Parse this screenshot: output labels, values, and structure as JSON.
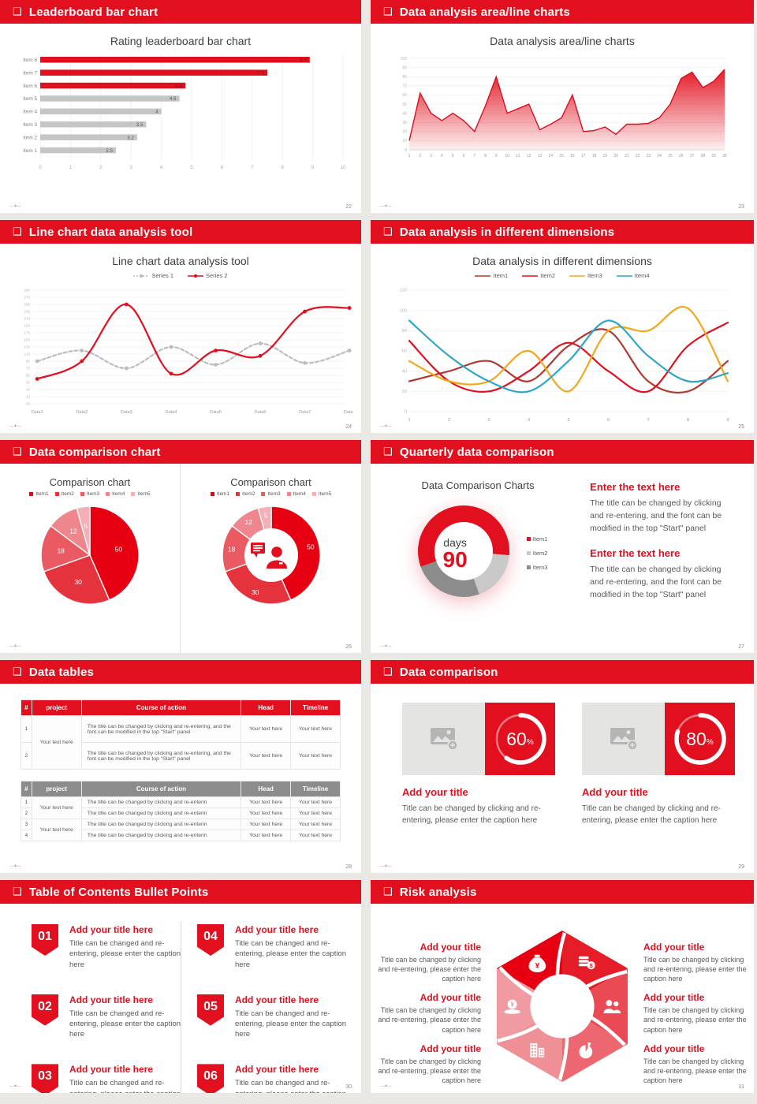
{
  "page": {
    "background": "#e9e8e5",
    "accent": "#e2101e"
  },
  "slides": [
    {
      "header": "Leaderboard bar chart",
      "page_num": "22"
    },
    {
      "header": "Data analysis area/line charts",
      "page_num": "23"
    },
    {
      "header": "Line chart data analysis tool",
      "page_num": "24"
    },
    {
      "header": "Data analysis in different dimensions",
      "page_num": "25"
    },
    {
      "header": "Data comparison chart",
      "page_num": "26"
    },
    {
      "header": "Quarterly data comparison",
      "page_num": "27"
    },
    {
      "header": "Data tables",
      "page_num": "28"
    },
    {
      "header": "Data comparison",
      "page_num": "29"
    },
    {
      "header": "Table of Contents Bullet Points",
      "page_num": "30"
    },
    {
      "header": "Risk analysis",
      "page_num": "31"
    }
  ],
  "chart_data": [
    {
      "type": "bar",
      "orientation": "horizontal",
      "title": "Rating leaderboard bar chart",
      "categories": [
        "Item 8",
        "Item 7",
        "Item 6",
        "Item 5",
        "Item 4",
        "Item 3",
        "Item 2",
        "Item 1"
      ],
      "values": [
        8.9,
        7.5,
        4.8,
        4.6,
        4,
        3.5,
        3.2,
        2.5
      ],
      "bar_colors": [
        "#e2101e",
        "#e2101e",
        "#e2101e",
        "#c5c5c5",
        "#c5c5c5",
        "#c5c5c5",
        "#c5c5c5",
        "#c5c5c5"
      ],
      "xlim": [
        0,
        10
      ],
      "xtick_step": 1,
      "grid": true
    },
    {
      "type": "area",
      "title": "Data analysis area/line charts",
      "x": [
        1,
        2,
        3,
        4,
        5,
        6,
        7,
        8,
        9,
        10,
        11,
        12,
        13,
        14,
        15,
        16,
        17,
        18,
        19,
        20,
        21,
        22,
        23,
        24,
        25,
        26,
        27,
        28,
        29,
        30
      ],
      "values": [
        10,
        62,
        40,
        32,
        40,
        32,
        20,
        48,
        80,
        40,
        45,
        50,
        22,
        28,
        35,
        60,
        20,
        21,
        25,
        17,
        28,
        28,
        29,
        35,
        50,
        78,
        85,
        68,
        75,
        88
      ],
      "ylim": [
        0,
        100
      ],
      "ytick_step": 10,
      "color": "#e2101e",
      "grid": true
    },
    {
      "type": "line",
      "title": "Line chart data analysis tool",
      "categories": [
        "Data1",
        "Data2",
        "Data3",
        "Data4",
        "Data5",
        "Data6",
        "Data7",
        "Data8"
      ],
      "series": [
        {
          "name": "Series 1",
          "color": "#bdbdbd",
          "dashed": true,
          "values": [
            90,
            120,
            70,
            130,
            80,
            140,
            85,
            120
          ]
        },
        {
          "name": "Series 2",
          "color": "#e2101e",
          "dashed": false,
          "values": [
            40,
            90,
            250,
            55,
            120,
            105,
            230,
            240
          ]
        }
      ],
      "ylim": [
        -30,
        290
      ],
      "ytick_step": 20,
      "markers": true,
      "legend_position": "top",
      "grid": true
    },
    {
      "type": "line",
      "title": "Data analysis in different dimensions",
      "x": [
        1,
        2,
        3,
        4,
        5,
        6,
        7,
        8,
        9
      ],
      "series": [
        {
          "name": "Item1",
          "color": "#b03a30",
          "values": [
            30,
            40,
            50,
            30,
            65,
            80,
            30,
            20,
            50
          ]
        },
        {
          "name": "Item2",
          "color": "#e2101e",
          "values": [
            70,
            30,
            20,
            40,
            68,
            40,
            20,
            65,
            88
          ]
        },
        {
          "name": "Item3",
          "color": "#f2a71c",
          "values": [
            50,
            30,
            30,
            60,
            20,
            80,
            80,
            102,
            30
          ]
        },
        {
          "name": "Item4",
          "color": "#2fa6c6",
          "values": [
            90,
            55,
            30,
            20,
            50,
            90,
            55,
            30,
            38
          ]
        }
      ],
      "ylim": [
        0,
        120
      ],
      "ytick_step": 20,
      "markers": false,
      "legend_position": "top",
      "grid": true
    },
    {
      "type": "pie",
      "title": "Comparison chart",
      "labels": [
        "Item1",
        "Item2",
        "Item3",
        "Item4",
        "Item5"
      ],
      "values": [
        50,
        30,
        18,
        12,
        5
      ],
      "colors": [
        "#e60012",
        "#e5333e",
        "#ea5a63",
        "#f0868d",
        "#f3b0b5"
      ]
    },
    {
      "type": "donut",
      "title": "Comparison chart",
      "labels": [
        "Item1",
        "Item2",
        "Item3",
        "Item4",
        "Item5"
      ],
      "values": [
        50,
        30,
        18,
        12,
        5
      ],
      "colors": [
        "#e60012",
        "#e5333e",
        "#ea5a63",
        "#f0868d",
        "#f3b0b5"
      ],
      "center_icon": "person-speech-bubble"
    },
    {
      "type": "donut",
      "title": "Data Comparison Charts",
      "labels": [
        "Item1",
        "Item2",
        "Item3"
      ],
      "values_deg": [
        205,
        65,
        90
      ],
      "colors": [
        "#e2101e",
        "#c9c9c9",
        "#8c8c8c"
      ],
      "center_label": "days",
      "center_value": "90"
    },
    {
      "type": "progress-rings",
      "values": [
        60,
        80
      ],
      "unit": "%",
      "ring_color": "#ffffff",
      "box_color": "#e2101e"
    }
  ],
  "quarterly": {
    "blocks": [
      {
        "title": "Enter the text here",
        "body": "The title can be changed by clicking and re-entering, and the font can be modified in the top \"Start\" panel"
      },
      {
        "title": "Enter the text here",
        "body": "The title can be changed by clicking and re-entering, and the font can be modified in the top \"Start\" panel"
      }
    ]
  },
  "tables": {
    "headers": [
      "#",
      "project",
      "Course of action",
      "Head",
      "Timeline"
    ],
    "tableA": {
      "nums": [
        "1",
        "2"
      ],
      "project": "Your text here",
      "course": "The title can be changed by clicking and re-entering, and the font can be modified in the top \"Start\" panel",
      "cell": "Your text here"
    },
    "tableB": {
      "nums": [
        "1",
        "2",
        "3",
        "4"
      ],
      "project": "Your text here",
      "course": "The title can be changed by clicking and re-enterin",
      "cell": "Your text here"
    }
  },
  "compare": {
    "title": "Add your title",
    "caption": "Title can be changed by clicking and re-entering, please enter the caption here",
    "items": [
      {
        "pct": 60
      },
      {
        "pct": 80
      }
    ],
    "placeholder_icon": "image-placeholder"
  },
  "toc": {
    "numbers": [
      "01",
      "02",
      "03",
      "04",
      "05",
      "06"
    ],
    "title": "Add your title here",
    "caption": "Title can be changed and re-entering, please enter the caption here"
  },
  "risk": {
    "title": "Add your title",
    "caption": "Title can be changed by clicking and re-entering, please enter the caption here",
    "icons": [
      "money-bag",
      "coins",
      "people",
      "pie-chart",
      "building",
      "money-pile"
    ],
    "petal_colors": [
      "#e60012",
      "#e41d29",
      "#e94a54",
      "#ec6770",
      "#ef9096",
      "#f09ba1"
    ]
  },
  "footer": {
    "logo": "—✦—"
  }
}
